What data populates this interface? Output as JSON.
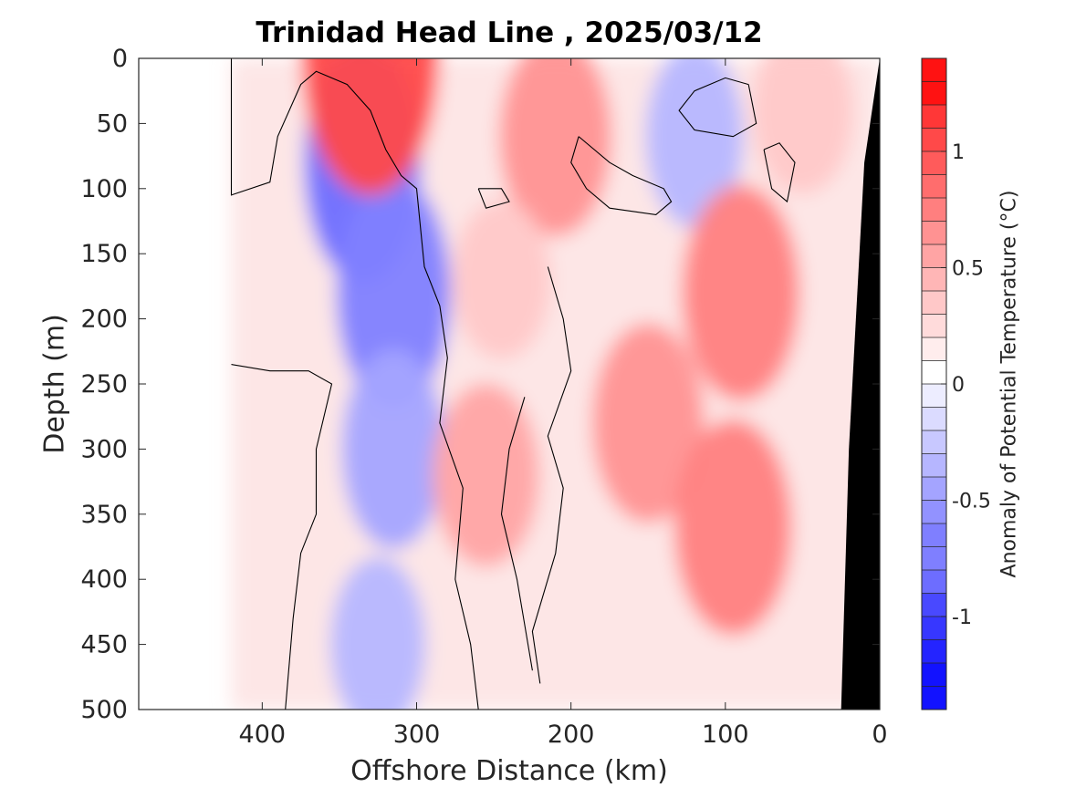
{
  "chart_data": {
    "type": "heatmap",
    "subtype": "filled-contour section",
    "title": "Trinidad Head Line , 2025/03/12",
    "xlabel": "Offshore Distance (km)",
    "ylabel": "Depth (m)",
    "colorbar_label": "Anomaly of Potential Temperature (°C)",
    "x_reversed": true,
    "y_reversed": true,
    "xlim": [
      480,
      0
    ],
    "ylim": [
      0,
      500
    ],
    "x_ticks": [
      400,
      300,
      200,
      100,
      0
    ],
    "y_ticks": [
      0,
      50,
      100,
      150,
      200,
      250,
      300,
      350,
      400,
      450,
      500
    ],
    "colorbar": {
      "range": [
        -1.4,
        1.4
      ],
      "step": 0.1,
      "ticks": [
        -1,
        -0.5,
        0,
        0.5,
        1
      ],
      "negative_color": "#0000ff",
      "positive_color": "#ff0000",
      "zero_color": "#ffffff"
    },
    "data_extent_x": [
      0,
      420
    ],
    "bathymetry_color": "#000000",
    "bathymetry_depth_at_x": {
      "x": [
        0,
        10,
        20,
        25
      ],
      "depth": [
        0,
        80,
        300,
        500
      ]
    },
    "contour_line_color": "#000000",
    "contour_levels": [
      0
    ],
    "features": [
      {
        "label": "cold core",
        "center_x": 335,
        "center_y": 80,
        "anomaly": -0.8
      },
      {
        "label": "cold core",
        "center_x": 315,
        "center_y": 180,
        "anomaly": -0.75
      },
      {
        "label": "cold tongue",
        "center_x": 315,
        "center_y": 300,
        "anomaly": -0.55
      },
      {
        "label": "cold column",
        "center_x": 325,
        "center_y": 450,
        "anomaly": -0.4
      },
      {
        "label": "cold eddy",
        "center_x": 120,
        "center_y": 60,
        "anomaly": -0.45
      },
      {
        "label": "surface warm",
        "center_x": 330,
        "center_y": 0,
        "anomaly": 1.0
      },
      {
        "label": "warm eddy",
        "center_x": 210,
        "center_y": 60,
        "anomaly": 0.55
      },
      {
        "label": "warm column",
        "center_x": 150,
        "center_y": 280,
        "anomaly": 0.55
      },
      {
        "label": "warm core",
        "center_x": 90,
        "center_y": 180,
        "anomaly": 0.65
      },
      {
        "label": "warm core",
        "center_x": 95,
        "center_y": 360,
        "anomaly": 0.65
      },
      {
        "label": "warm lens",
        "center_x": 255,
        "center_y": 320,
        "anomaly": 0.45
      },
      {
        "label": "warm patch",
        "center_x": 245,
        "center_y": 170,
        "anomaly": 0.3
      },
      {
        "label": "nearshore warm",
        "center_x": 50,
        "center_y": 40,
        "anomaly": 0.35
      }
    ]
  }
}
